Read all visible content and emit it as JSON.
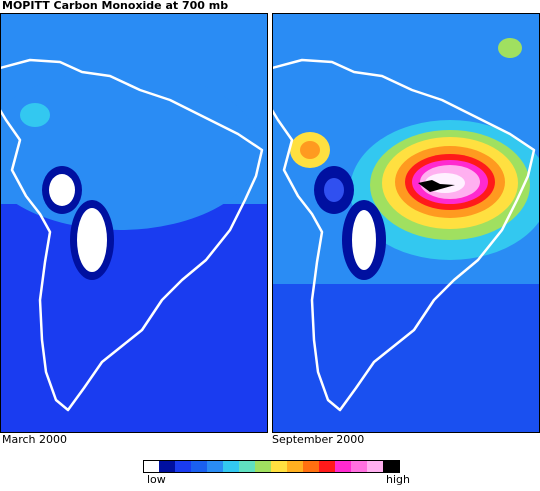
{
  "title": "MOPITT Carbon Monoxide at 700 mb",
  "panels": [
    {
      "label": "March 2000"
    },
    {
      "label": "September 2000"
    }
  ],
  "legend": {
    "low": "low",
    "high": "high"
  }
}
